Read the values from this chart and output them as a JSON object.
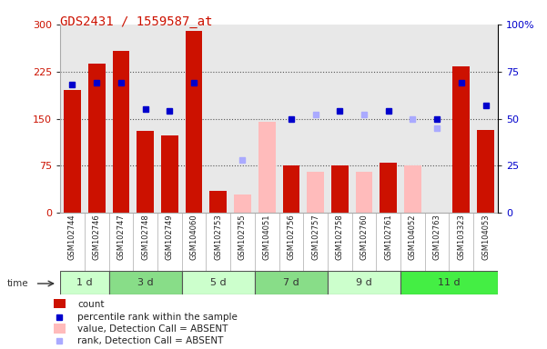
{
  "title": "GDS2431 / 1559587_at",
  "samples": [
    "GSM102744",
    "GSM102746",
    "GSM102747",
    "GSM102748",
    "GSM102749",
    "GSM104060",
    "GSM102753",
    "GSM102755",
    "GSM104051",
    "GSM102756",
    "GSM102757",
    "GSM102758",
    "GSM102760",
    "GSM102761",
    "GSM104052",
    "GSM102763",
    "GSM103323",
    "GSM104053"
  ],
  "time_groups": [
    {
      "label": "1 d",
      "start": 0,
      "end": 2,
      "color": "#ccffcc"
    },
    {
      "label": "3 d",
      "start": 2,
      "end": 5,
      "color": "#88dd88"
    },
    {
      "label": "5 d",
      "start": 5,
      "end": 8,
      "color": "#ccffcc"
    },
    {
      "label": "7 d",
      "start": 8,
      "end": 11,
      "color": "#88dd88"
    },
    {
      "label": "9 d",
      "start": 11,
      "end": 14,
      "color": "#ccffcc"
    },
    {
      "label": "11 d",
      "start": 14,
      "end": 18,
      "color": "#44ee44"
    }
  ],
  "count_values": [
    195,
    237,
    258,
    130,
    124,
    290,
    35,
    null,
    null,
    75,
    null,
    75,
    null,
    80,
    null,
    null,
    233,
    132
  ],
  "absent_value_bars": [
    null,
    null,
    null,
    null,
    null,
    null,
    null,
    30,
    145,
    null,
    65,
    null,
    65,
    null,
    75,
    null,
    null,
    null
  ],
  "rank_present": [
    68,
    69,
    69,
    55,
    54,
    69,
    null,
    null,
    null,
    50,
    null,
    54,
    null,
    54,
    null,
    50,
    69,
    57
  ],
  "rank_absent": [
    null,
    null,
    null,
    null,
    null,
    null,
    null,
    28,
    null,
    null,
    52,
    null,
    52,
    null,
    50,
    45,
    null,
    null
  ],
  "yticks_left": [
    0,
    75,
    150,
    225,
    300
  ],
  "yticks_right": [
    0,
    25,
    50,
    75,
    100
  ],
  "yticklabels_right": [
    "0",
    "25",
    "50",
    "75",
    "100%"
  ],
  "bar_color_present": "#cc1100",
  "bar_color_absent": "#ffbbbb",
  "rank_color_present": "#0000cc",
  "rank_color_absent": "#aaaaff",
  "bg_plot": "#e8e8e8",
  "dotted_color": "#555555",
  "legend_items": [
    {
      "label": "count",
      "type": "rect",
      "color": "#cc1100"
    },
    {
      "label": "percentile rank within the sample",
      "type": "square",
      "color": "#0000cc"
    },
    {
      "label": "value, Detection Call = ABSENT",
      "type": "rect",
      "color": "#ffbbbb"
    },
    {
      "label": "rank, Detection Call = ABSENT",
      "type": "square",
      "color": "#aaaaff"
    }
  ]
}
